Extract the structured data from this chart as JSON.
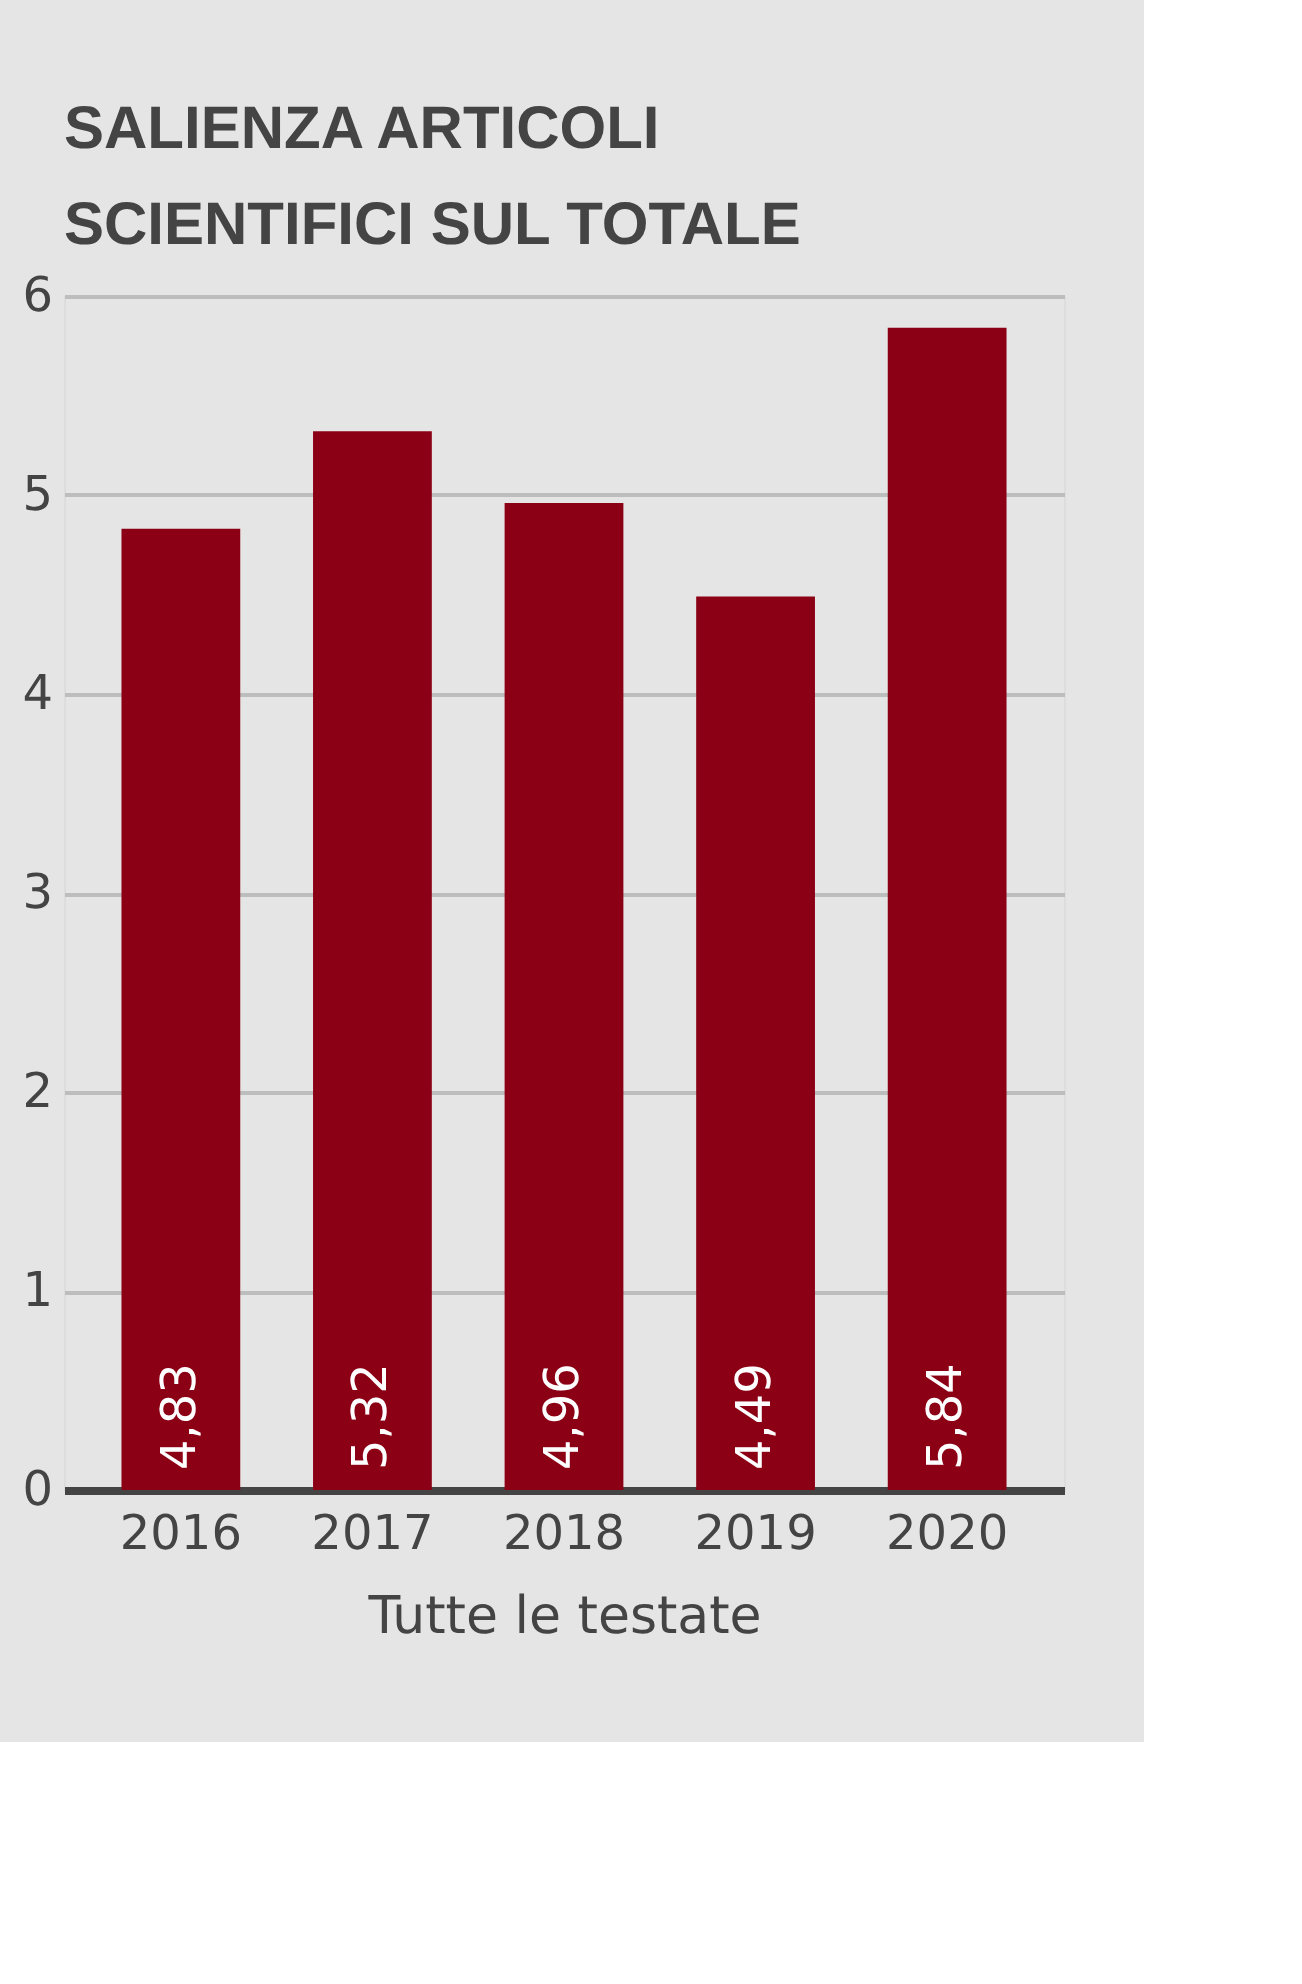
{
  "chart_data": {
    "type": "bar",
    "title": [
      "SALIENZA ARTICOLI",
      "SCIENTIFICI SUL TOTALE"
    ],
    "xlabel": "Tutte le testate",
    "categories": [
      "2016",
      "2017",
      "2018",
      "2019",
      "2020"
    ],
    "values": [
      4.83,
      5.32,
      4.96,
      4.49,
      5.84
    ],
    "value_labels": [
      "4,83",
      "5,32",
      "4,96",
      "4,49",
      "5,84"
    ],
    "color": "#8c0016",
    "ylim": [
      0,
      6
    ],
    "yticks": [
      0,
      1,
      2,
      3,
      4,
      5,
      6
    ],
    "grid": "y"
  }
}
